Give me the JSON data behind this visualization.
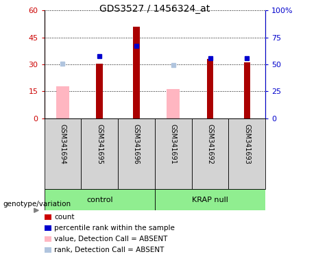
{
  "title": "GDS3527 / 1456324_at",
  "samples": [
    "GSM341694",
    "GSM341695",
    "GSM341696",
    "GSM341691",
    "GSM341692",
    "GSM341693"
  ],
  "red_bars": [
    null,
    30.5,
    51.0,
    null,
    33.0,
    31.0
  ],
  "blue_markers": [
    null,
    34.5,
    40.5,
    null,
    33.5,
    33.5
  ],
  "pink_bars": [
    18.0,
    null,
    null,
    16.5,
    null,
    null
  ],
  "light_blue_markers": [
    30.5,
    null,
    null,
    29.5,
    null,
    null
  ],
  "ylim_left": [
    0,
    60
  ],
  "ylim_right": [
    0,
    100
  ],
  "yticks_left": [
    0,
    15,
    30,
    45,
    60
  ],
  "ytick_labels_left": [
    "0",
    "15",
    "30",
    "45",
    "60"
  ],
  "yticks_right": [
    0,
    25,
    50,
    75,
    100
  ],
  "ytick_labels_right": [
    "0",
    "25",
    "50",
    "75",
    "100%"
  ],
  "left_axis_color": "#cc0000",
  "right_axis_color": "#0000cc",
  "legend_items": [
    {
      "label": "count",
      "color": "#cc0000"
    },
    {
      "label": "percentile rank within the sample",
      "color": "#0000cd"
    },
    {
      "label": "value, Detection Call = ABSENT",
      "color": "#ffb6c1"
    },
    {
      "label": "rank, Detection Call = ABSENT",
      "color": "#b0c4de"
    }
  ]
}
